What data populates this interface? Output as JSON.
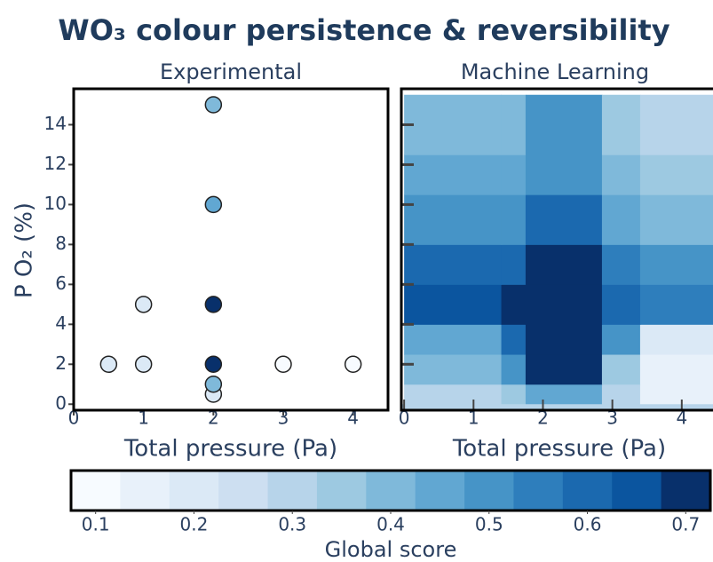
{
  "title": "WO₃ colour persistence & reversibility",
  "chart_data": [
    {
      "type": "scatter",
      "title": "Experimental",
      "x_label": "Total pressure (Pa)",
      "y_label": "P O₂ (%)",
      "x": [
        0.5,
        1,
        1,
        2,
        2,
        2,
        2,
        2,
        2,
        3,
        4
      ],
      "values": [
        2,
        2,
        5,
        0.5,
        1,
        2,
        5,
        10,
        15,
        2,
        2
      ],
      "scores": [
        0.22,
        0.2,
        0.18,
        0.2,
        0.4,
        0.72,
        0.7,
        0.45,
        0.38,
        0.08,
        0.06
      ],
      "xlim": [
        0,
        4.5
      ],
      "ylim": [
        -0.3,
        15.8
      ],
      "xticks": [
        0,
        1,
        2,
        3,
        4
      ],
      "yticks": [
        0,
        2,
        4,
        6,
        8,
        10,
        12,
        14
      ]
    },
    {
      "type": "heatmap",
      "title": "Machine Learning",
      "x_label": "Total pressure (Pa)",
      "x_edges": [
        0,
        1.4,
        1.75,
        2.85,
        3.4,
        4.45
      ],
      "y_edges": [
        0,
        1,
        2.5,
        4,
        6,
        8,
        10.5,
        12.5,
        15.5
      ],
      "z": [
        [
          0.3,
          0.35,
          0.45,
          0.3,
          0.15
        ],
        [
          0.42,
          0.5,
          0.72,
          0.35,
          0.15
        ],
        [
          0.45,
          0.6,
          0.72,
          0.5,
          0.2
        ],
        [
          0.67,
          0.68,
          0.72,
          0.6,
          0.55
        ],
        [
          0.58,
          0.62,
          0.72,
          0.55,
          0.5
        ],
        [
          0.5,
          0.52,
          0.6,
          0.45,
          0.4
        ],
        [
          0.45,
          0.45,
          0.52,
          0.4,
          0.35
        ],
        [
          0.38,
          0.4,
          0.5,
          0.35,
          0.3
        ]
      ],
      "xlim": [
        -0.04,
        4.45
      ],
      "ylim": [
        -0.3,
        15.8
      ],
      "xticks": [
        0,
        1,
        2,
        3,
        4
      ],
      "yticks": [
        2,
        4,
        6,
        8,
        10,
        12,
        14
      ]
    }
  ],
  "colorbar": {
    "label": "Global score",
    "clim": [
      0.075,
      0.725
    ],
    "ticks": [
      0.1,
      0.2,
      0.3,
      0.4,
      0.5,
      0.6,
      0.7
    ],
    "colors": [
      "#f7fbff",
      "#e8f1fa",
      "#dbe9f6",
      "#cddff1",
      "#b7d4ea",
      "#9dc9e1",
      "#7fb9da",
      "#61a7d2",
      "#4694c7",
      "#2e7ebc",
      "#1b69af",
      "#0b559f",
      "#08306b"
    ]
  }
}
